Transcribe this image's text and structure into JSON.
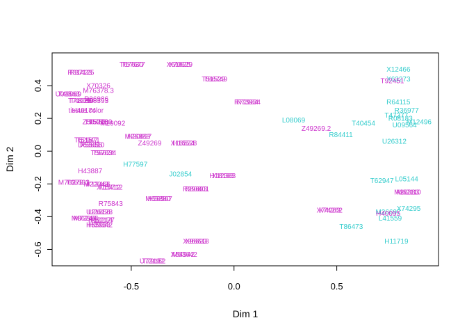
{
  "chart_data": {
    "type": "scatter",
    "title": "",
    "xlabel": "Dim 1",
    "ylabel": "Dim 2",
    "xlim": [
      -0.885,
      0.995
    ],
    "ylim": [
      -0.7,
      0.6
    ],
    "x_ticks": [
      -0.5,
      0.0,
      0.5
    ],
    "x_tick_labels": [
      "-0.5",
      "0.0",
      "0.5"
    ],
    "y_ticks": [
      -0.6,
      -0.4,
      -0.2,
      0.0,
      0.2,
      0.4
    ],
    "y_tick_labels": [
      "-0.6",
      "-0.4",
      "-0.2",
      "0.0",
      "0.2",
      "0.4"
    ],
    "grid": false,
    "legend": "none",
    "colors": {
      "magenta": "#cc33cc",
      "cyan": "#33cccc"
    },
    "points": [
      {
        "label": "R37125",
        "x": -0.74,
        "y": 0.48,
        "color": "magenta"
      },
      {
        "label": "R31423",
        "x": -0.75,
        "y": 0.48,
        "color": "magenta"
      },
      {
        "label": "T57677",
        "x": -0.49,
        "y": 0.53,
        "color": "magenta"
      },
      {
        "label": "T67630",
        "x": -0.5,
        "y": 0.53,
        "color": "magenta"
      },
      {
        "label": "X70629",
        "x": -0.26,
        "y": 0.53,
        "color": "magenta"
      },
      {
        "label": "X61625",
        "x": -0.27,
        "y": 0.53,
        "color": "magenta"
      },
      {
        "label": "T86749",
        "x": -0.09,
        "y": 0.44,
        "color": "magenta"
      },
      {
        "label": "T51529",
        "x": -0.1,
        "y": 0.44,
        "color": "magenta"
      },
      {
        "label": "X70326",
        "x": -0.66,
        "y": 0.4,
        "color": "magenta"
      },
      {
        "label": "M76378.3",
        "x": -0.66,
        "y": 0.37,
        "color": "magenta"
      },
      {
        "label": "T49069",
        "x": -0.8,
        "y": 0.35,
        "color": "magenta"
      },
      {
        "label": "U09563",
        "x": -0.81,
        "y": 0.35,
        "color": "magenta"
      },
      {
        "label": "R36986",
        "x": -0.67,
        "y": 0.32,
        "color": "magenta"
      },
      {
        "label": "H08393",
        "x": -0.67,
        "y": 0.31,
        "color": "magenta"
      },
      {
        "label": "T71025",
        "x": -0.75,
        "y": 0.31,
        "color": "magenta"
      },
      {
        "label": "T48099",
        "x": -0.74,
        "y": 0.31,
        "color": "magenta"
      },
      {
        "label": "R72984",
        "x": 0.06,
        "y": 0.3,
        "color": "magenta"
      },
      {
        "label": "R73934",
        "x": 0.07,
        "y": 0.3,
        "color": "magenta"
      },
      {
        "label": "tissue.color",
        "x": -0.72,
        "y": 0.25,
        "color": "magenta"
      },
      {
        "label": "H40174",
        "x": -0.73,
        "y": 0.25,
        "color": "magenta"
      },
      {
        "label": "T95018",
        "x": -0.67,
        "y": 0.18,
        "color": "magenta"
      },
      {
        "label": "Z50753",
        "x": -0.68,
        "y": 0.18,
        "color": "magenta"
      },
      {
        "label": "T52269",
        "x": -0.65,
        "y": 0.18,
        "color": "magenta"
      },
      {
        "label": "M29092",
        "x": -0.59,
        "y": 0.17,
        "color": "magenta"
      },
      {
        "label": "H20697",
        "x": -0.46,
        "y": 0.09,
        "color": "magenta"
      },
      {
        "label": "M26383",
        "x": -0.47,
        "y": 0.09,
        "color": "magenta"
      },
      {
        "label": "T51571",
        "x": -0.71,
        "y": 0.07,
        "color": "magenta"
      },
      {
        "label": "T62947",
        "x": -0.72,
        "y": 0.07,
        "color": "magenta"
      },
      {
        "label": "Z49269",
        "x": -0.41,
        "y": 0.05,
        "color": "magenta"
      },
      {
        "label": "H16528",
        "x": -0.24,
        "y": 0.05,
        "color": "magenta"
      },
      {
        "label": "X16524",
        "x": -0.25,
        "y": 0.05,
        "color": "magenta"
      },
      {
        "label": "R55310",
        "x": -0.69,
        "y": 0.04,
        "color": "magenta"
      },
      {
        "label": "D63856",
        "x": -0.7,
        "y": 0.04,
        "color": "magenta"
      },
      {
        "label": "T57634",
        "x": -0.63,
        "y": -0.01,
        "color": "magenta"
      },
      {
        "label": "T56624",
        "x": -0.64,
        "y": -0.01,
        "color": "magenta"
      },
      {
        "label": "H77597",
        "x": -0.48,
        "y": -0.08,
        "color": "cyan"
      },
      {
        "label": "H43887",
        "x": -0.7,
        "y": -0.12,
        "color": "magenta"
      },
      {
        "label": "J02854",
        "x": -0.26,
        "y": -0.14,
        "color": "cyan"
      },
      {
        "label": "X12383",
        "x": -0.05,
        "y": -0.15,
        "color": "magenta"
      },
      {
        "label": "H18183",
        "x": -0.06,
        "y": -0.15,
        "color": "magenta"
      },
      {
        "label": "M76378.1",
        "x": -0.78,
        "y": -0.19,
        "color": "magenta"
      },
      {
        "label": "T65532",
        "x": -0.76,
        "y": -0.19,
        "color": "magenta"
      },
      {
        "label": "M22043",
        "x": -0.67,
        "y": -0.2,
        "color": "magenta"
      },
      {
        "label": "X12466",
        "x": -0.66,
        "y": -0.2,
        "color": "magenta"
      },
      {
        "label": "X15712",
        "x": -0.6,
        "y": -0.22,
        "color": "magenta"
      },
      {
        "label": "X15412",
        "x": -0.61,
        "y": -0.22,
        "color": "magenta"
      },
      {
        "label": "R80801",
        "x": -0.18,
        "y": -0.23,
        "color": "magenta"
      },
      {
        "label": "R29603",
        "x": -0.19,
        "y": -0.23,
        "color": "magenta"
      },
      {
        "label": "H56567",
        "x": -0.36,
        "y": -0.29,
        "color": "magenta"
      },
      {
        "label": "M65880",
        "x": -0.37,
        "y": -0.29,
        "color": "magenta"
      },
      {
        "label": "R75843",
        "x": -0.6,
        "y": -0.32,
        "color": "magenta"
      },
      {
        "label": "U26128",
        "x": -0.65,
        "y": -0.37,
        "color": "magenta"
      },
      {
        "label": "U21856",
        "x": -0.66,
        "y": -0.37,
        "color": "magenta"
      },
      {
        "label": "M73996",
        "x": -0.72,
        "y": -0.41,
        "color": "magenta"
      },
      {
        "label": "M86247",
        "x": -0.73,
        "y": -0.41,
        "color": "magenta"
      },
      {
        "label": "R52177",
        "x": -0.64,
        "y": -0.42,
        "color": "magenta"
      },
      {
        "label": "H12214",
        "x": -0.65,
        "y": -0.42,
        "color": "magenta"
      },
      {
        "label": "H55933",
        "x": -0.66,
        "y": -0.45,
        "color": "magenta"
      },
      {
        "label": "H09342",
        "x": -0.65,
        "y": -0.45,
        "color": "magenta"
      },
      {
        "label": "X96618",
        "x": -0.18,
        "y": -0.55,
        "color": "magenta"
      },
      {
        "label": "X96693",
        "x": -0.19,
        "y": -0.55,
        "color": "magenta"
      },
      {
        "label": "M53642",
        "x": -0.24,
        "y": -0.63,
        "color": "magenta"
      },
      {
        "label": "X54942",
        "x": -0.25,
        "y": -0.63,
        "color": "magenta"
      },
      {
        "label": "T79152",
        "x": -0.39,
        "y": -0.67,
        "color": "magenta"
      },
      {
        "label": "U72192",
        "x": -0.4,
        "y": -0.67,
        "color": "magenta"
      },
      {
        "label": "X12466",
        "x": 0.8,
        "y": 0.5,
        "color": "cyan"
      },
      {
        "label": "X63273",
        "x": 0.8,
        "y": 0.44,
        "color": "cyan"
      },
      {
        "label": "T92451",
        "x": 0.77,
        "y": 0.43,
        "color": "magenta"
      },
      {
        "label": "R64115",
        "x": 0.8,
        "y": 0.3,
        "color": "cyan"
      },
      {
        "label": "R36977",
        "x": 0.84,
        "y": 0.25,
        "color": "cyan"
      },
      {
        "label": "T47377",
        "x": 0.79,
        "y": 0.22,
        "color": "cyan"
      },
      {
        "label": "R08183",
        "x": 0.81,
        "y": 0.2,
        "color": "cyan"
      },
      {
        "label": "M12496",
        "x": 0.9,
        "y": 0.18,
        "color": "cyan"
      },
      {
        "label": "U09564",
        "x": 0.83,
        "y": 0.16,
        "color": "cyan"
      },
      {
        "label": "L08069",
        "x": 0.29,
        "y": 0.19,
        "color": "cyan"
      },
      {
        "label": "T40454",
        "x": 0.63,
        "y": 0.17,
        "color": "cyan"
      },
      {
        "label": "Z49269.2",
        "x": 0.4,
        "y": 0.14,
        "color": "magenta"
      },
      {
        "label": "R84411",
        "x": 0.52,
        "y": 0.1,
        "color": "cyan"
      },
      {
        "label": "U26312",
        "x": 0.78,
        "y": 0.06,
        "color": "cyan"
      },
      {
        "label": "L05144",
        "x": 0.84,
        "y": -0.17,
        "color": "cyan"
      },
      {
        "label": "T62947",
        "x": 0.72,
        "y": -0.18,
        "color": "cyan"
      },
      {
        "label": "M26383",
        "x": 0.84,
        "y": -0.25,
        "color": "magenta"
      },
      {
        "label": "M62110",
        "x": 0.85,
        "y": -0.25,
        "color": "magenta"
      },
      {
        "label": "X74295",
        "x": 0.85,
        "y": -0.35,
        "color": "cyan"
      },
      {
        "label": "M26697",
        "x": 0.75,
        "y": -0.37,
        "color": "cyan"
      },
      {
        "label": "H40095",
        "x": 0.75,
        "y": -0.38,
        "color": "magenta"
      },
      {
        "label": "L41559",
        "x": 0.76,
        "y": -0.41,
        "color": "cyan"
      },
      {
        "label": "X74262",
        "x": 0.47,
        "y": -0.36,
        "color": "magenta"
      },
      {
        "label": "X74263",
        "x": 0.46,
        "y": -0.36,
        "color": "magenta"
      },
      {
        "label": "T86473",
        "x": 0.57,
        "y": -0.46,
        "color": "cyan"
      },
      {
        "label": "H11719",
        "x": 0.79,
        "y": -0.55,
        "color": "cyan"
      }
    ]
  }
}
